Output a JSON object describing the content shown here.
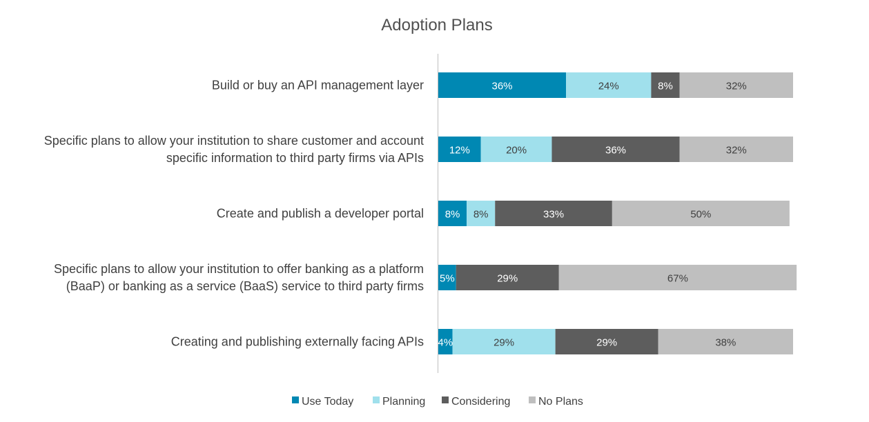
{
  "chart_data": {
    "type": "bar",
    "orientation": "horizontal",
    "stacked": true,
    "title": "Adoption Plans",
    "categories": [
      [
        "Build or buy an API management layer"
      ],
      [
        "Specific plans to allow your institution to share customer and account",
        "specific information to third party firms via APIs"
      ],
      [
        "Create and publish a developer portal"
      ],
      [
        "Specific plans to allow your institution to offer banking as a platform",
        "(BaaP) or banking as a service (BaaS) service to third party firms"
      ],
      [
        "Creating and publishing externally facing APIs"
      ]
    ],
    "series": [
      {
        "name": "Use Today",
        "color": "#0088b3",
        "label_color": "#ffffff",
        "values": [
          36,
          12,
          8,
          5,
          4
        ],
        "labels": [
          "36%",
          "12%",
          "8%",
          "5%",
          "4%"
        ]
      },
      {
        "name": "Planning",
        "color": "#a0e0ec",
        "label_color": "#404040",
        "values": [
          24,
          20,
          8,
          0,
          29
        ],
        "labels": [
          "24%",
          "20%",
          "8%",
          "0%",
          "29%"
        ]
      },
      {
        "name": "Considering",
        "color": "#5d5d5d",
        "label_color": "#ffffff",
        "values": [
          8,
          36,
          33,
          29,
          29
        ],
        "labels": [
          "8%",
          "36%",
          "33%",
          "29%",
          "29%"
        ]
      },
      {
        "name": "No Plans",
        "color": "#bfbfbf",
        "label_color": "#404040",
        "values": [
          32,
          32,
          50,
          67,
          38
        ],
        "labels": [
          "32%",
          "32%",
          "50%",
          "67%",
          "38%"
        ]
      }
    ],
    "xlim": [
      0,
      100
    ],
    "legend": "bottom",
    "grid": false
  }
}
